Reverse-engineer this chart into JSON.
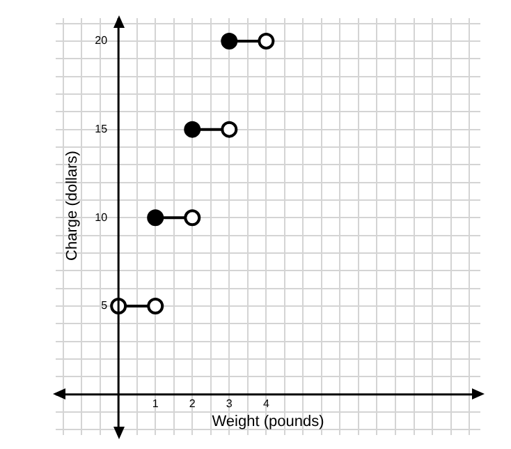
{
  "chart_data": {
    "type": "line",
    "xlabel": "Weight (pounds)",
    "ylabel": "Charge (dollars)",
    "xlim": [
      -1.7,
      9.8
    ],
    "ylim": [
      -2.3,
      21.3
    ],
    "xticks": [
      {
        "value": -1.5,
        "label": null
      },
      {
        "value": -1,
        "label": null
      },
      {
        "value": -0.5,
        "label": null
      },
      {
        "value": 0.5,
        "label": null
      },
      1,
      {
        "value": 1.5,
        "label": null
      },
      2,
      {
        "value": 2.5,
        "label": null
      },
      3,
      {
        "value": 3.5,
        "label": null
      },
      4,
      {
        "value": 4.5,
        "label": null
      },
      {
        "value": 5,
        "label": null
      },
      {
        "value": 5.5,
        "label": null
      },
      {
        "value": 6,
        "label": null
      },
      {
        "value": 6.5,
        "label": null
      },
      {
        "value": 7,
        "label": null
      },
      {
        "value": 7.5,
        "label": null
      },
      {
        "value": 8,
        "label": null
      },
      {
        "value": 8.5,
        "label": null
      },
      {
        "value": 9,
        "label": null
      },
      {
        "value": 9.5,
        "label": null
      }
    ],
    "yticks": [
      {
        "value": -2,
        "label": null
      },
      {
        "value": -1,
        "label": null
      },
      {
        "value": 1,
        "label": null
      },
      {
        "value": 2,
        "label": null
      },
      {
        "value": 3,
        "label": null
      },
      {
        "value": 4,
        "label": null
      },
      5,
      {
        "value": 6,
        "label": null
      },
      {
        "value": 7,
        "label": null
      },
      {
        "value": 8,
        "label": null
      },
      {
        "value": 9,
        "label": null
      },
      10,
      {
        "value": 11,
        "label": null
      },
      {
        "value": 12,
        "label": null
      },
      {
        "value": 13,
        "label": null
      },
      {
        "value": 14,
        "label": null
      },
      15,
      {
        "value": 16,
        "label": null
      },
      {
        "value": 17,
        "label": null
      },
      {
        "value": 18,
        "label": null
      },
      {
        "value": 19,
        "label": null
      },
      20,
      {
        "value": 21,
        "label": null
      }
    ],
    "grid": true,
    "marker": "circle",
    "series": [
      {
        "type": "line",
        "color": "#000000",
        "x": [
          0,
          1
        ],
        "values": [
          5,
          5
        ],
        "colors": [
          "#ffffff",
          "#ffffff"
        ]
      },
      {
        "type": "line",
        "color": "#000000",
        "x": [
          1,
          2
        ],
        "values": [
          10,
          10
        ],
        "colors": [
          "#000000",
          "#ffffff"
        ]
      },
      {
        "type": "line",
        "color": "#000000",
        "x": [
          2,
          3
        ],
        "values": [
          15,
          15
        ],
        "colors": [
          "#000000",
          "#ffffff"
        ]
      },
      {
        "type": "line",
        "color": "#000000",
        "x": [
          3,
          4
        ],
        "values": [
          20,
          20
        ],
        "colors": [
          "#000000",
          "#ffffff"
        ]
      }
    ]
  }
}
